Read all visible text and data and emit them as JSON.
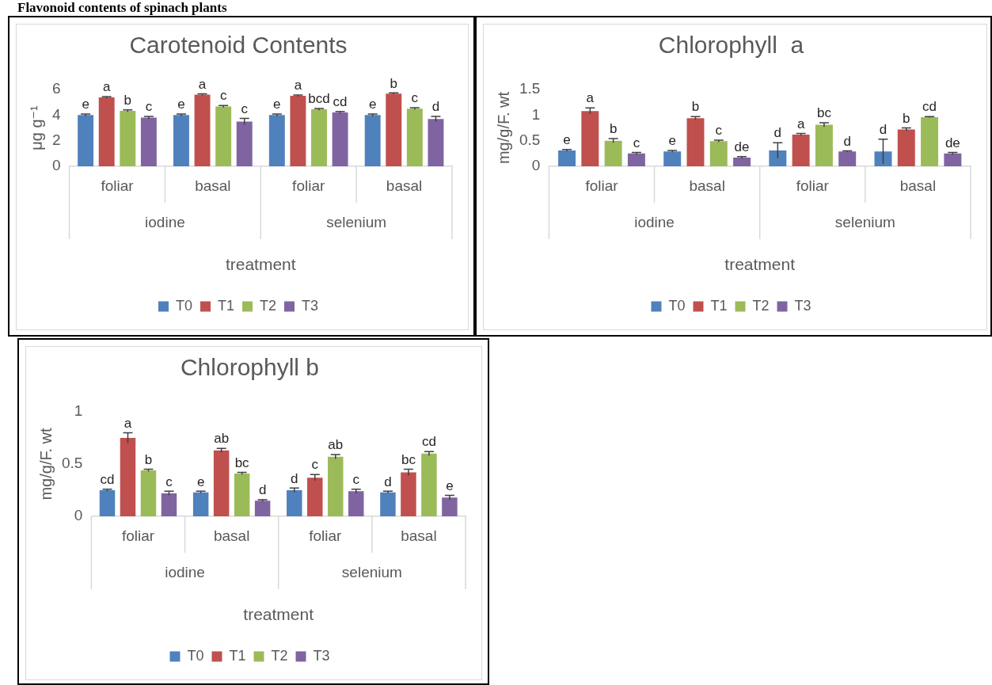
{
  "chart_data": [
    {
      "type": "bar",
      "title": "Carotenoid Contents",
      "xlabel": "treatment",
      "ylabel": "μg g⁻¹",
      "categories": [
        "foliar",
        "basal",
        "foliar",
        "basal"
      ],
      "ylim": [
        0,
        6
      ],
      "yticks": [
        0,
        2,
        4,
        6
      ],
      "legend": "bottom",
      "grid": false,
      "series": [
        {
          "name": "T0",
          "color": "#4f81bd",
          "values": [
            4.0,
            4.0,
            4.0,
            4.0
          ],
          "errors": [
            0.08,
            0.08,
            0.08,
            0.08
          ],
          "value_labels": [
            "e",
            "e",
            "e",
            "e"
          ]
        },
        {
          "name": "T1",
          "color": "#c0504d",
          "values": [
            5.38,
            5.6,
            5.5,
            5.67
          ],
          "errors": [
            0.06,
            0.06,
            0.06,
            0.06
          ],
          "value_labels": [
            "a",
            "a",
            "a",
            "b"
          ]
        },
        {
          "name": "T2",
          "color": "#9bbb59",
          "values": [
            4.33,
            4.67,
            4.45,
            4.5
          ],
          "errors": [
            0.08,
            0.08,
            0.07,
            0.08
          ],
          "value_labels": [
            "b",
            "c",
            "bcd",
            "c"
          ]
        },
        {
          "name": "T3",
          "color": "#8064a2",
          "values": [
            3.8,
            3.5,
            4.2,
            3.7
          ],
          "errors": [
            0.1,
            0.25,
            0.08,
            0.2
          ],
          "value_labels": [
            "c",
            "c",
            "cd",
            "d"
          ]
        }
      ],
      "annotations": [
        "iodine",
        "selenium",
        "Flavonoid contents of spinach plants"
      ]
    },
    {
      "type": "bar",
      "title": "Chlorophyll  a",
      "xlabel": "treatment",
      "ylabel": "mg/g/F. wt",
      "categories": [
        "foliar",
        "basal",
        "foliar",
        "basal"
      ],
      "ylim": [
        0,
        1.5
      ],
      "yticks": [
        0,
        0.5,
        1,
        1.5
      ],
      "legend": "bottom",
      "grid": false,
      "series": [
        {
          "name": "T0",
          "color": "#4f81bd",
          "values": [
            0.31,
            0.29,
            0.31,
            0.29
          ],
          "errors": [
            0.02,
            0.02,
            0.15,
            0.24
          ],
          "value_labels": [
            "e",
            "e",
            "d",
            "d"
          ]
        },
        {
          "name": "T1",
          "color": "#c0504d",
          "values": [
            1.08,
            0.94,
            0.62,
            0.72
          ],
          "errors": [
            0.06,
            0.03,
            0.02,
            0.03
          ],
          "value_labels": [
            "a",
            "b",
            "a",
            "b"
          ]
        },
        {
          "name": "T2",
          "color": "#9bbb59",
          "values": [
            0.5,
            0.49,
            0.81,
            0.96
          ],
          "errors": [
            0.04,
            0.02,
            0.04,
            0.01
          ],
          "value_labels": [
            "b",
            "c",
            "bc",
            "cd"
          ]
        },
        {
          "name": "T3",
          "color": "#8064a2",
          "values": [
            0.25,
            0.17,
            0.29,
            0.25
          ],
          "errors": [
            0.02,
            0.02,
            0.01,
            0.02
          ],
          "value_labels": [
            "c",
            "de",
            "d",
            "de"
          ]
        }
      ],
      "annotations": [
        "iodine",
        "selenium"
      ]
    },
    {
      "type": "bar",
      "title": "Chlorophyll b",
      "xlabel": "treatment",
      "ylabel": "mg/g/F. wt",
      "categories": [
        "foliar",
        "basal",
        "foliar",
        "basal"
      ],
      "ylim": [
        0,
        1
      ],
      "yticks": [
        0,
        0.5,
        1
      ],
      "legend": "bottom",
      "grid": false,
      "series": [
        {
          "name": "T0",
          "color": "#4f81bd",
          "values": [
            0.25,
            0.23,
            0.25,
            0.23
          ],
          "errors": [
            0.01,
            0.01,
            0.02,
            0.01
          ],
          "value_labels": [
            "cd",
            "e",
            "d",
            "d"
          ]
        },
        {
          "name": "T1",
          "color": "#c0504d",
          "values": [
            0.75,
            0.63,
            0.37,
            0.42
          ],
          "errors": [
            0.05,
            0.02,
            0.03,
            0.03
          ],
          "value_labels": [
            "a",
            "ab",
            "c",
            "bc"
          ]
        },
        {
          "name": "T2",
          "color": "#9bbb59",
          "values": [
            0.44,
            0.41,
            0.57,
            0.6
          ],
          "errors": [
            0.01,
            0.01,
            0.02,
            0.02
          ],
          "value_labels": [
            "b",
            "bc",
            "ab",
            "cd"
          ]
        },
        {
          "name": "T3",
          "color": "#8064a2",
          "values": [
            0.22,
            0.15,
            0.24,
            0.18
          ],
          "errors": [
            0.02,
            0.01,
            0.02,
            0.02
          ],
          "value_labels": [
            "c",
            "d",
            "c",
            "e"
          ]
        }
      ],
      "annotations": [
        "iodine",
        "selenium"
      ]
    }
  ]
}
